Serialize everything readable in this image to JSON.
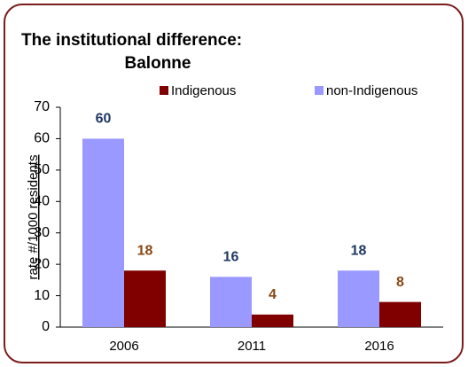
{
  "chart_data": {
    "type": "bar",
    "title": "The institutional difference:",
    "subtitle": "Balonne",
    "y_label": "rate #/1000 residents",
    "categories": [
      "2006",
      "2011",
      "2016"
    ],
    "series": [
      {
        "name": "Indigenous",
        "color": "#800000",
        "label_color": "#8b4513",
        "values": [
          18,
          4,
          8
        ]
      },
      {
        "name": "non-Indigenous",
        "color": "#9999ff",
        "label_color": "#1f3864",
        "values": [
          60,
          16,
          18
        ]
      }
    ],
    "ylim": [
      0,
      70
    ],
    "yticks": [
      0,
      10,
      20,
      30,
      40,
      50,
      60,
      70
    ],
    "legend": "top"
  }
}
